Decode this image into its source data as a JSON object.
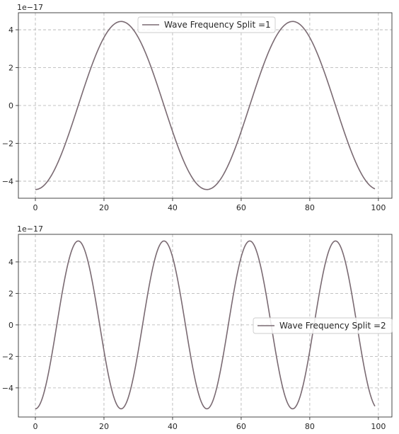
{
  "colors": {
    "series": "#7a6a72"
  },
  "chart_data": [
    {
      "type": "line",
      "offset_label": "1e−17",
      "x_ticks": [
        0,
        20,
        40,
        60,
        80,
        100
      ],
      "x_tick_labels": [
        "0",
        "20",
        "40",
        "60",
        "80",
        "100"
      ],
      "y_ticks": [
        -4,
        -2,
        0,
        2,
        4
      ],
      "y_tick_labels": [
        "−4",
        "−2",
        "0",
        "2",
        "4"
      ],
      "xlim": [
        -4.95,
        103.95
      ],
      "ylim": [
        -4.9,
        4.9
      ],
      "grid": true,
      "legend_position": "upper-center",
      "series": [
        {
          "name": "Wave Frequency Split =1",
          "function": "-4.44*cos(2*pi*x/50)",
          "x_range": [
            0,
            99
          ],
          "amplitude": 4.44,
          "period": 50
        }
      ]
    },
    {
      "type": "line",
      "offset_label": "1e−17",
      "x_ticks": [
        0,
        20,
        40,
        60,
        80,
        100
      ],
      "x_tick_labels": [
        "0",
        "20",
        "40",
        "60",
        "80",
        "100"
      ],
      "y_ticks": [
        -4,
        -2,
        0,
        2,
        4
      ],
      "y_tick_labels": [
        "−4",
        "−2",
        "0",
        "2",
        "4"
      ],
      "xlim": [
        -4.95,
        103.95
      ],
      "ylim": [
        -5.85,
        5.75
      ],
      "grid": true,
      "legend_position": "center-right",
      "series": [
        {
          "name": "Wave Frequency Split =2",
          "function": "-5.33*cos(2*pi*x/25)",
          "x_range": [
            0,
            99
          ],
          "amplitude": 5.33,
          "period": 25
        }
      ]
    }
  ]
}
